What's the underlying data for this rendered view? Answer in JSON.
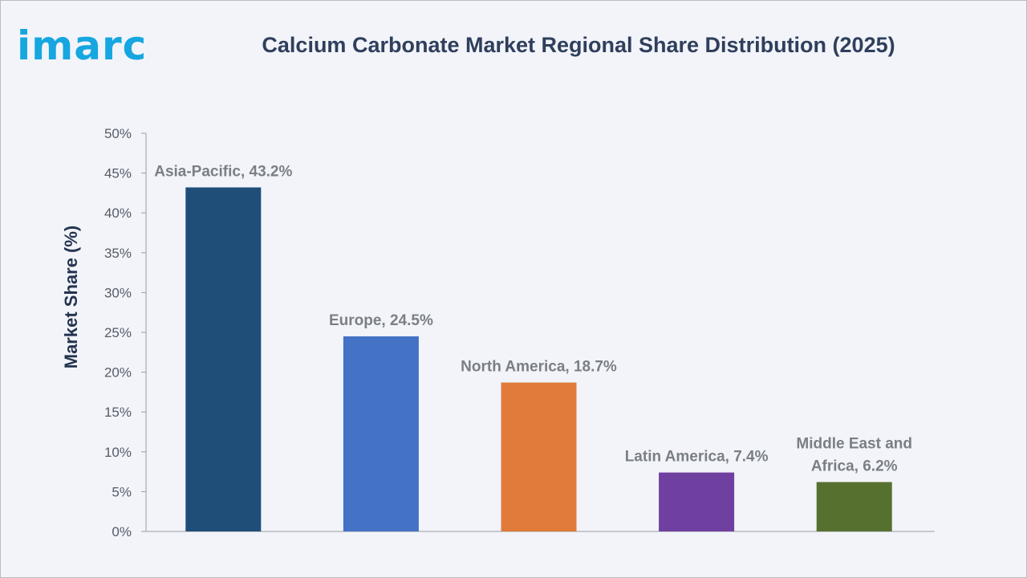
{
  "logo_text": "imarc",
  "chart_data": {
    "type": "bar",
    "title": "Calcium Carbonate Market Regional Share Distribution (2025)",
    "xlabel": "",
    "ylabel": "Market Share (%)",
    "ylim": [
      0,
      50
    ],
    "ytick_step": 5,
    "ytick_suffix": "%",
    "grid": false,
    "categories": [
      "Asia-Pacific",
      "Europe",
      "North America",
      "Latin America",
      "Middle East and Africa"
    ],
    "values": [
      43.2,
      24.5,
      18.7,
      7.4,
      6.2
    ],
    "data_labels": [
      [
        "Asia-Pacific, 43.2%"
      ],
      [
        "Europe, 24.5%"
      ],
      [
        "North America, 18.7%"
      ],
      [
        "Latin America, 7.4%"
      ],
      [
        "Middle East and",
        "Africa, 6.2%"
      ]
    ],
    "colors": [
      "#1f4e79",
      "#4472c4",
      "#e07b39",
      "#7040a0",
      "#56702f"
    ]
  }
}
